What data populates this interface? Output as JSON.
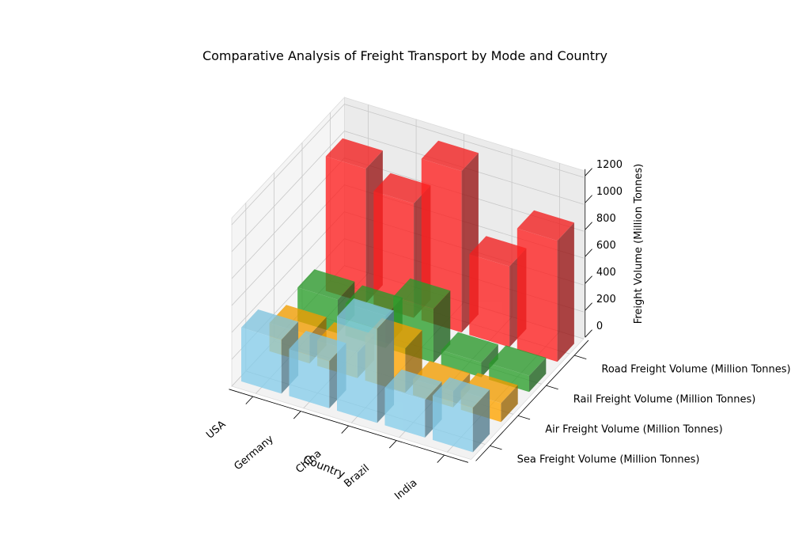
{
  "chart_data": {
    "type": "bar3d",
    "title": "Comparative Analysis of Freight Transport by Mode and Country",
    "xlabel": "Country",
    "ylabel": "",
    "zlabel": "Freight Volume (Million Tonnes)",
    "categories": [
      "USA",
      "Germany",
      "China",
      "Brazil",
      "India"
    ],
    "series": [
      {
        "name": "Sea Freight Volume (Million Tonnes)",
        "color": "#87ceeb",
        "values": [
          400,
          350,
          700,
          280,
          330
        ]
      },
      {
        "name": "Air Freight Volume (Million Tonnes)",
        "color": "#ffa500",
        "values": [
          210,
          190,
          330,
          120,
          140
        ]
      },
      {
        "name": "Rail Freight Volume (Million Tonnes)",
        "color": "#2ca02c",
        "values": [
          250,
          240,
          400,
          110,
          120
        ]
      },
      {
        "name": "Road Freight Volume (Million Tonnes)",
        "color": "#ff2020",
        "values": [
          1000,
          850,
          1200,
          600,
          900
        ]
      }
    ],
    "zticks": [
      0,
      200,
      400,
      600,
      800,
      1000,
      1200
    ],
    "zlim": [
      0,
      1250
    ],
    "grid": true
  }
}
